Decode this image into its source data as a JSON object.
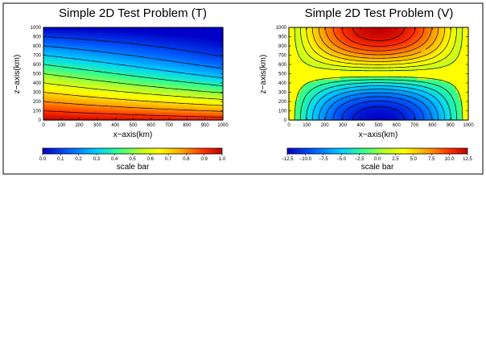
{
  "chart_data": [
    {
      "type": "heatmap",
      "title": "Simple 2D Test Problem (T)",
      "xlabel": "x−axis(km)",
      "ylabel": "z−axis(km)",
      "xlim": [
        0,
        1000
      ],
      "ylim": [
        0,
        1000
      ],
      "xticks": [
        0,
        100,
        200,
        300,
        400,
        500,
        600,
        700,
        800,
        900,
        1000
      ],
      "yticks": [
        0,
        100,
        200,
        300,
        400,
        500,
        600,
        700,
        800,
        900,
        1000
      ],
      "field": "T(x,z) = 1 - z/1000 - 0.1*sin(pi*x/2000)*... (temperature field, ~1.0 at bottom, ~0.0 at top, isotherms sloping down to the right)",
      "contour_levels": [
        0.1,
        0.2,
        0.3,
        0.4,
        0.5,
        0.6,
        0.7,
        0.8,
        0.9
      ],
      "scale_bar": {
        "label": "scale bar",
        "ticks": [
          "0.0",
          "0.1",
          "0.2",
          "0.3",
          "0.4",
          "0.5",
          "0.6",
          "0.7",
          "0.8",
          "0.9",
          "1.0"
        ],
        "range": [
          0.0,
          1.0
        ]
      }
    },
    {
      "type": "heatmap",
      "title": "Simple 2D Test Problem (V)",
      "xlabel": "x−axis(km)",
      "ylabel": "z−axis(km)",
      "xlim": [
        0,
        1000
      ],
      "ylim": [
        0,
        1000
      ],
      "xticks": [
        0,
        100,
        200,
        300,
        400,
        500,
        600,
        700,
        800,
        900,
        1000
      ],
      "yticks": [
        0,
        100,
        200,
        300,
        400,
        500,
        600,
        700,
        800,
        900,
        1000
      ],
      "field": "V(x,z) = 12.5*sin(pi*x/1000)*cos(pi*z/1000) (velocity, max ~12.5 at top centre, min ~-12.5 at bottom centre)",
      "contour_levels": [
        -11.25,
        -10,
        -8.75,
        -7.5,
        -6.25,
        -5,
        -3.75,
        -2.5,
        -1.25,
        1.25,
        2.5,
        3.75,
        5,
        6.25,
        7.5,
        8.75,
        10,
        11.25
      ],
      "scale_bar": {
        "label": "scale bar",
        "ticks": [
          "−12.5",
          "−10.0",
          "−7.5",
          "−5.0",
          "−2.5",
          "0.0",
          "2.5",
          "5.0",
          "7.5",
          "10.0",
          "12.5"
        ],
        "range": [
          -12.5,
          12.5
        ]
      }
    }
  ],
  "colors": {
    "low": "#0a0ac8",
    "mid": "#ffff00",
    "high": "#d20000"
  }
}
